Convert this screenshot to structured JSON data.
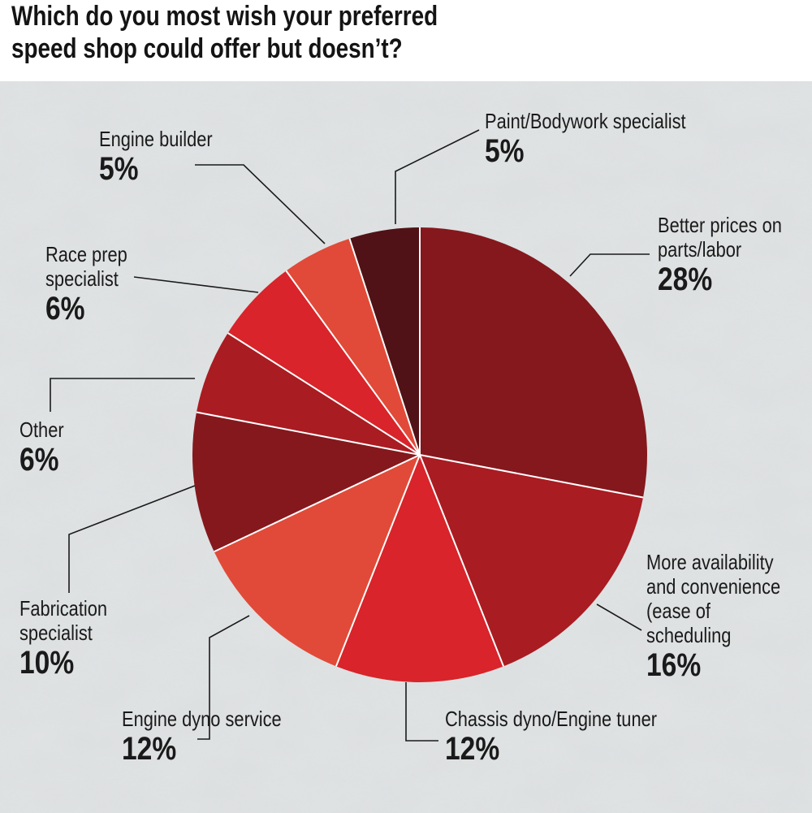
{
  "title_lines": [
    "Which do you most wish your preferred",
    "speed shop could offer but doesn’t?"
  ],
  "colors": {
    "background_top": "#ffffff",
    "background": "#dcdfe0",
    "text": "#1a1a1a",
    "leader": "#1a1a1a"
  },
  "chart_data": {
    "type": "pie",
    "title": "Which do you most wish your preferred speed shop could offer but doesn’t?",
    "start": "12 o'clock, clockwise",
    "slices": [
      {
        "name_lines": [
          "Better prices on",
          "parts/labor"
        ],
        "pct_label": "28%",
        "value": 28,
        "color": "#85181d"
      },
      {
        "name_lines": [
          "More availability",
          "and convenience",
          "(ease of",
          "scheduling"
        ],
        "pct_label": "16%",
        "value": 16,
        "color": "#a91c22"
      },
      {
        "name_lines": [
          "Chassis dyno/Engine tuner"
        ],
        "pct_label": "12%",
        "value": 12,
        "color": "#d8242a"
      },
      {
        "name_lines": [
          "Engine dyno service"
        ],
        "pct_label": "12%",
        "value": 12,
        "color": "#e14a38"
      },
      {
        "name_lines": [
          "Fabrication",
          "specialist"
        ],
        "pct_label": "10%",
        "value": 10,
        "color": "#85181d"
      },
      {
        "name_lines": [
          "Other"
        ],
        "pct_label": "6%",
        "value": 6,
        "color": "#a91c22"
      },
      {
        "name_lines": [
          "Race prep",
          "specialist"
        ],
        "pct_label": "6%",
        "value": 6,
        "color": "#d8242a"
      },
      {
        "name_lines": [
          "Engine builder"
        ],
        "pct_label": "5%",
        "value": 5,
        "color": "#e14a38"
      },
      {
        "name_lines": [
          "Paint/Bodywork specialist"
        ],
        "pct_label": "5%",
        "value": 5,
        "color": "#501216"
      }
    ]
  }
}
